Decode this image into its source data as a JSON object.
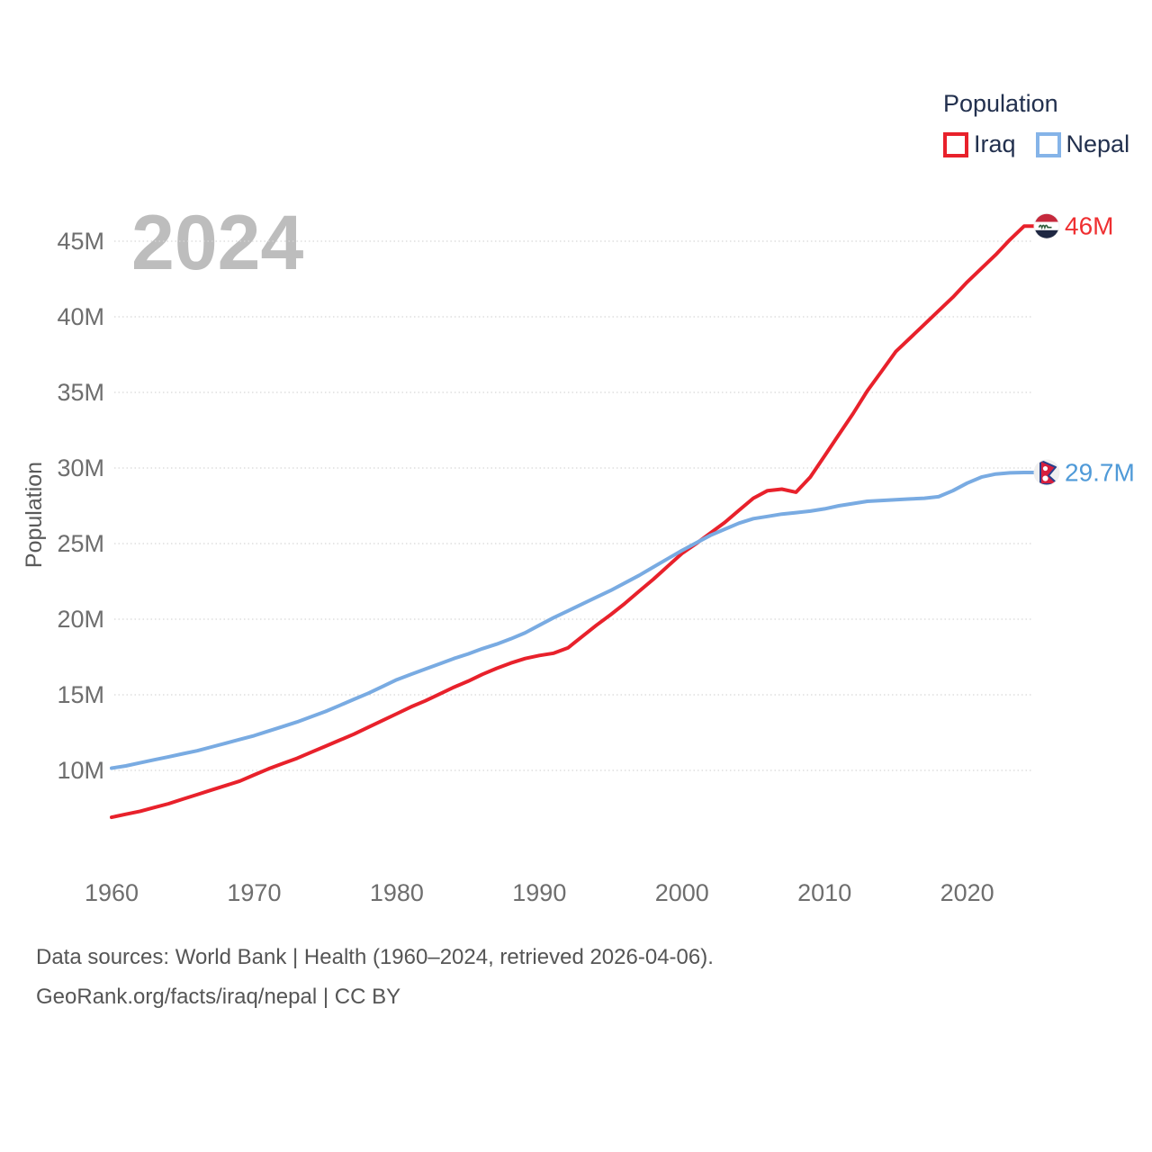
{
  "legend": {
    "title": "Population",
    "items": [
      {
        "label": "Iraq",
        "color": "#e8212b"
      },
      {
        "label": "Nepal",
        "color": "#85b4e8"
      }
    ]
  },
  "watermark": "2024",
  "y_axis_title": "Population",
  "footer": {
    "line1": "Data sources: World Bank | Health (1960–2024, retrieved 2026-04-06).",
    "line2": "GeoRank.org/facts/iraq/nepal | CC BY"
  },
  "chart_data": {
    "type": "line",
    "title": "Population",
    "xlabel": "",
    "ylabel": "Population",
    "xlim": [
      1960,
      2024
    ],
    "ylim": [
      6.5,
      47
    ],
    "grid": "horizontal-dotted",
    "legend_position": "top-right",
    "x": [
      1960,
      1961,
      1962,
      1963,
      1964,
      1965,
      1966,
      1967,
      1968,
      1969,
      1970,
      1971,
      1972,
      1973,
      1974,
      1975,
      1976,
      1977,
      1978,
      1979,
      1980,
      1981,
      1982,
      1983,
      1984,
      1985,
      1986,
      1987,
      1988,
      1989,
      1990,
      1991,
      1992,
      1993,
      1994,
      1995,
      1996,
      1997,
      1998,
      1999,
      2000,
      2001,
      2002,
      2003,
      2004,
      2005,
      2006,
      2007,
      2008,
      2009,
      2010,
      2011,
      2012,
      2013,
      2014,
      2015,
      2016,
      2017,
      2018,
      2019,
      2020,
      2021,
      2022,
      2023,
      2024
    ],
    "series": [
      {
        "name": "Iraq",
        "color": "#e8212b",
        "flag": "iraq",
        "end_label": "46M",
        "end_label_color": "#ef2f31",
        "values": [
          6.9,
          7.1,
          7.3,
          7.55,
          7.8,
          8.1,
          8.4,
          8.7,
          9.0,
          9.3,
          9.7,
          10.1,
          10.45,
          10.8,
          11.2,
          11.6,
          12.0,
          12.4,
          12.85,
          13.3,
          13.75,
          14.2,
          14.6,
          15.05,
          15.5,
          15.9,
          16.35,
          16.75,
          17.1,
          17.4,
          17.6,
          17.75,
          18.1,
          18.85,
          19.6,
          20.3,
          21.05,
          21.85,
          22.65,
          23.5,
          24.35,
          25.0,
          25.7,
          26.4,
          27.2,
          28.0,
          28.5,
          28.6,
          28.4,
          29.4,
          30.8,
          32.2,
          33.6,
          35.1,
          36.4,
          37.7,
          38.6,
          39.5,
          40.4,
          41.3,
          42.3,
          43.2,
          44.1,
          45.1,
          46.0
        ]
      },
      {
        "name": "Nepal",
        "color": "#79abe2",
        "flag": "nepal",
        "end_label": "29.7M",
        "end_label_color": "#4f9ad8",
        "values": [
          10.15,
          10.3,
          10.5,
          10.7,
          10.9,
          11.1,
          11.3,
          11.55,
          11.8,
          12.05,
          12.3,
          12.6,
          12.9,
          13.2,
          13.55,
          13.9,
          14.3,
          14.7,
          15.1,
          15.55,
          16.0,
          16.35,
          16.7,
          17.05,
          17.4,
          17.7,
          18.05,
          18.35,
          18.7,
          19.1,
          19.6,
          20.1,
          20.55,
          21.0,
          21.45,
          21.9,
          22.4,
          22.9,
          23.45,
          24.0,
          24.55,
          25.05,
          25.55,
          25.95,
          26.35,
          26.65,
          26.8,
          26.95,
          27.05,
          27.15,
          27.3,
          27.5,
          27.65,
          27.8,
          27.85,
          27.9,
          27.95,
          28.0,
          28.1,
          28.5,
          29.0,
          29.4,
          29.6,
          29.68,
          29.7
        ]
      }
    ],
    "xticks": {
      "values": [
        1960,
        1970,
        1980,
        1990,
        2000,
        2010,
        2020
      ],
      "labels": [
        "1960",
        "1970",
        "1980",
        "1990",
        "2000",
        "2010",
        "2020"
      ]
    },
    "yticks": {
      "values": [
        10,
        15,
        20,
        25,
        30,
        35,
        40,
        45
      ],
      "labels": [
        "10M",
        "15M",
        "20M",
        "25M",
        "30M",
        "35M",
        "40M",
        "45M"
      ]
    }
  },
  "colors": {
    "tick_label": "#6e6e6e",
    "gridline": "#d8d8d8",
    "watermark": "#bdbdbd",
    "legend_text": "#22304e",
    "footer_text": "#555555"
  }
}
